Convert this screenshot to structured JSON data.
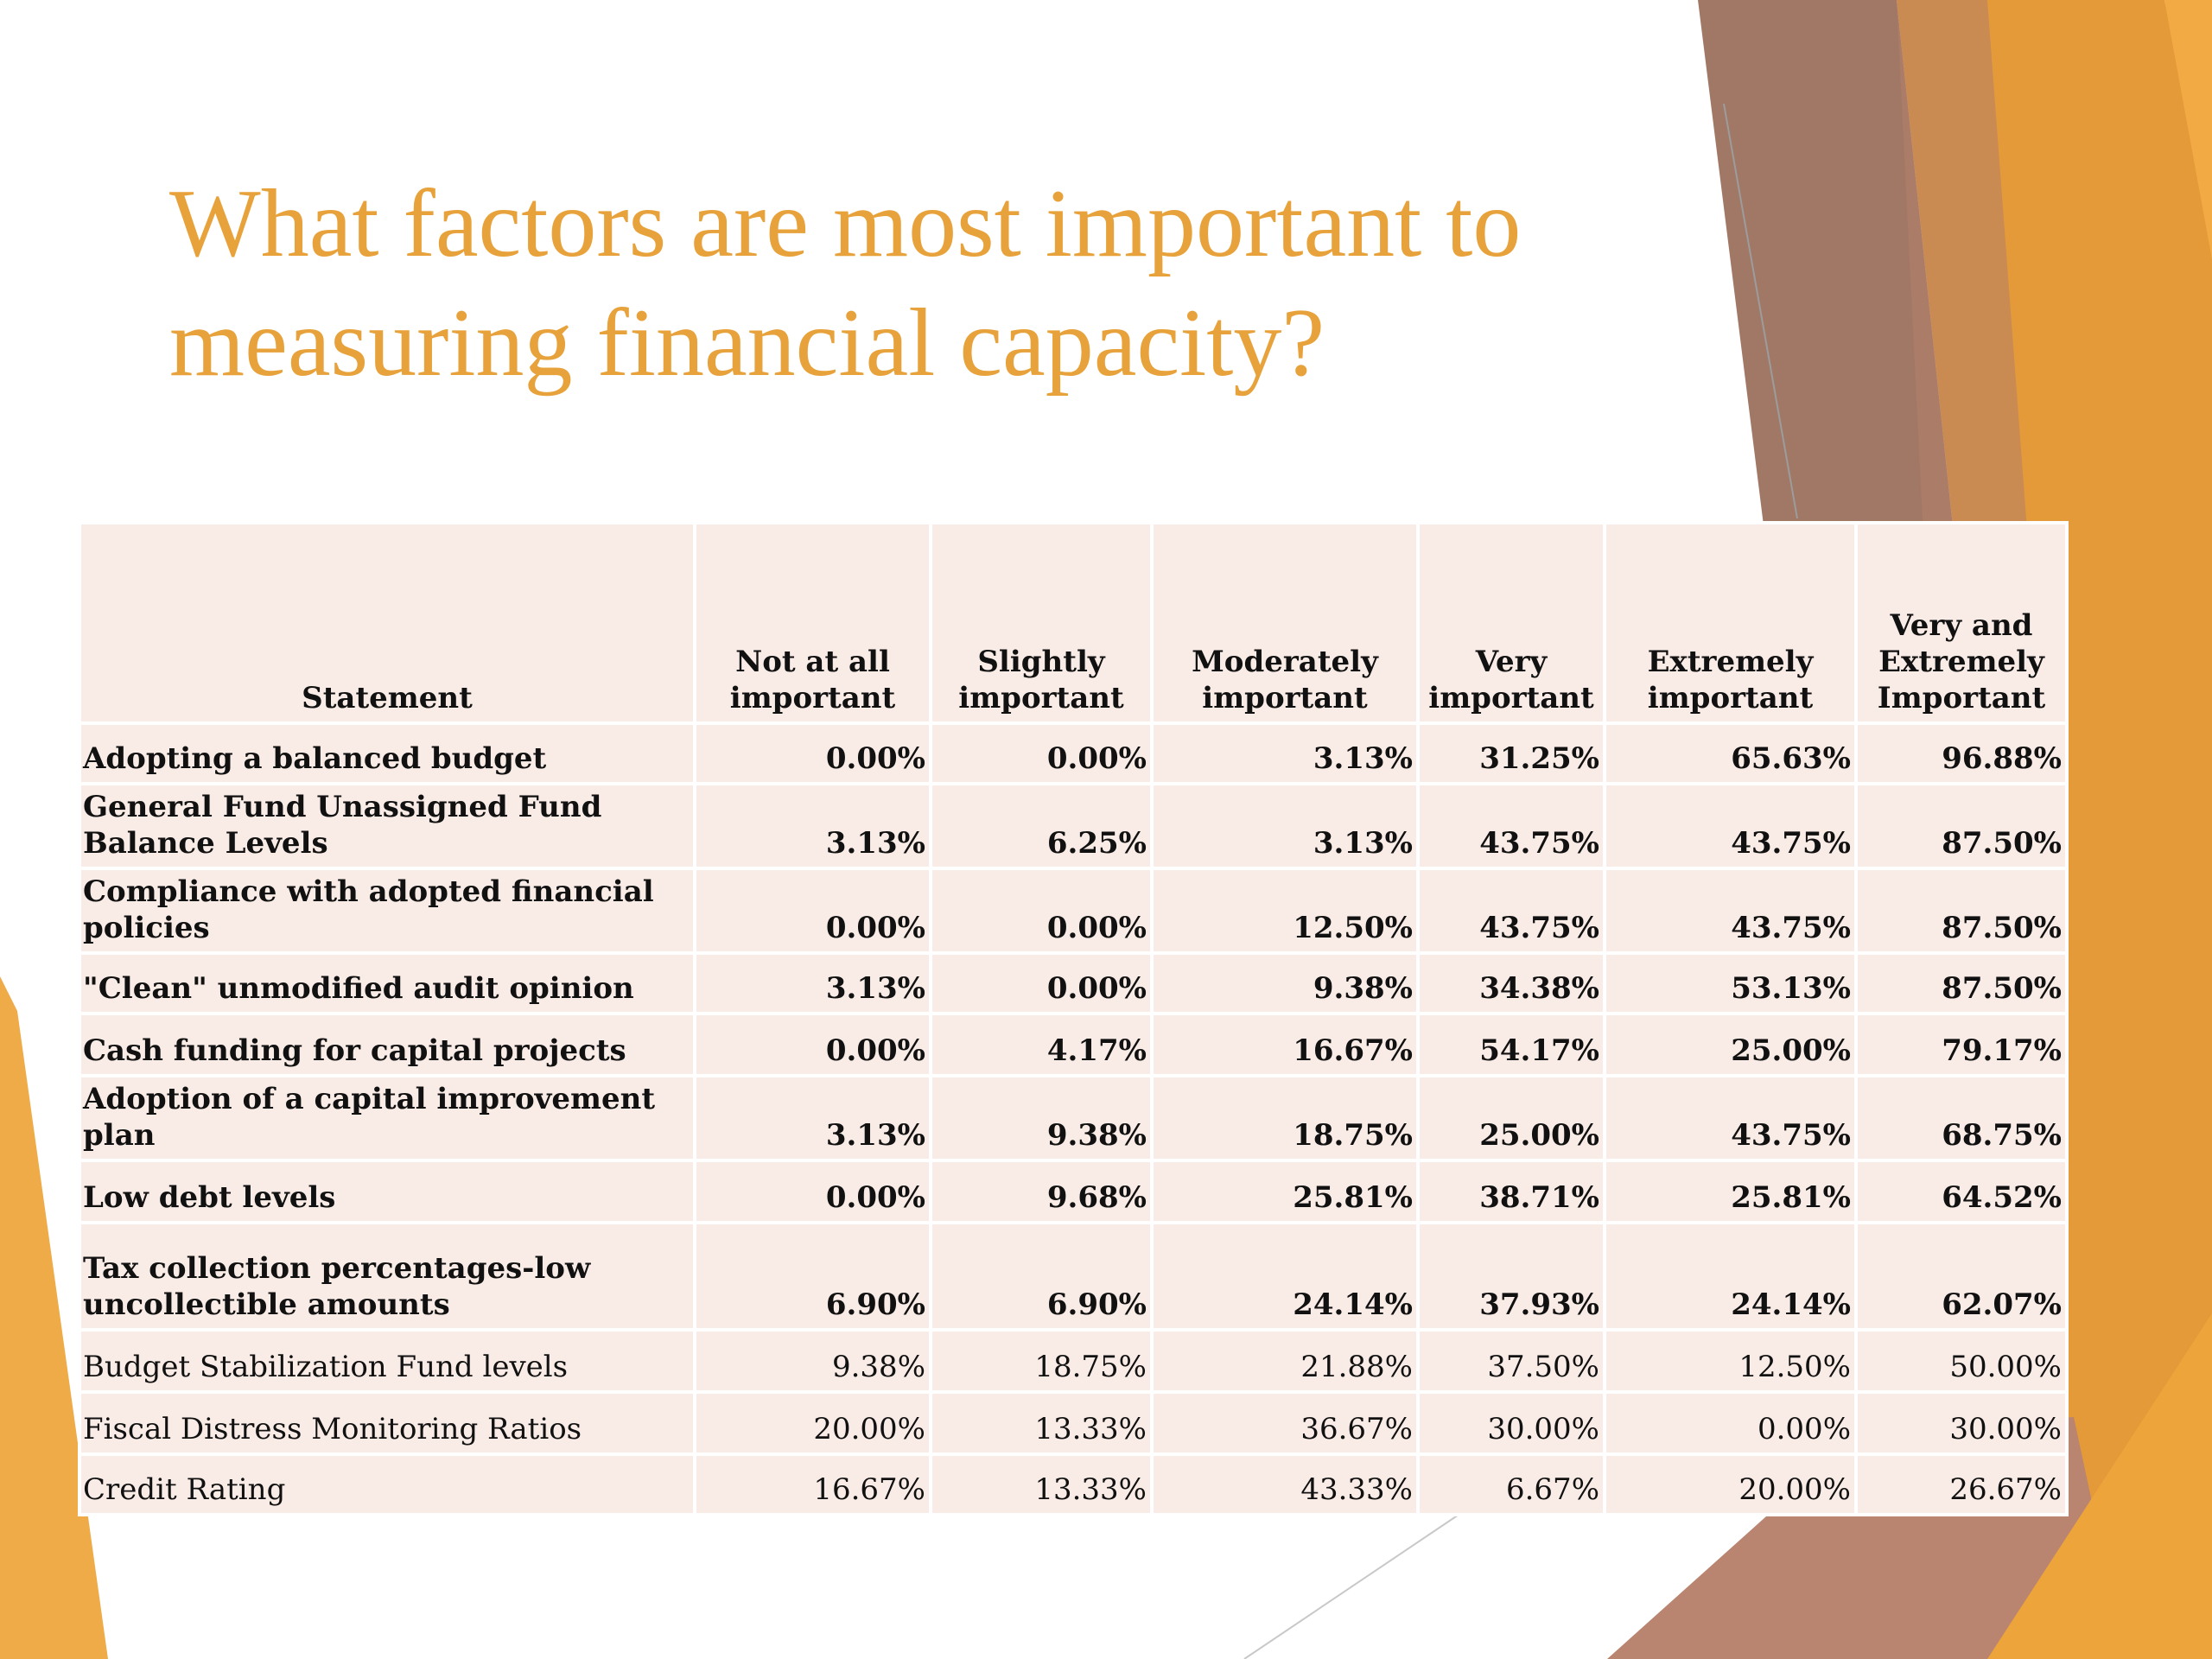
{
  "title": "What factors are most important to measuring financial capacity?",
  "colors": {
    "title": "#e8a23b",
    "table_bg": "#f9ece6",
    "accent_orange": "#eda43a",
    "accent_brown": "#a07866"
  },
  "table": {
    "headers": [
      "Statement",
      "Not at all important",
      "Slightly important",
      "Moderately important",
      "Very important",
      "Extremely important",
      "Very and Extremely Important"
    ],
    "rows": [
      {
        "statement": "Adopting a balanced budget",
        "values": [
          "0.00%",
          "0.00%",
          "3.13%",
          "31.25%",
          "65.63%",
          "96.88%"
        ]
      },
      {
        "statement": "General Fund Unassigned Fund Balance Levels",
        "values": [
          "3.13%",
          "6.25%",
          "3.13%",
          "43.75%",
          "43.75%",
          "87.50%"
        ]
      },
      {
        "statement": "Compliance with adopted financial policies",
        "values": [
          "0.00%",
          "0.00%",
          "12.50%",
          "43.75%",
          "43.75%",
          "87.50%"
        ]
      },
      {
        "statement": "\"Clean\" unmodified audit opinion",
        "values": [
          "3.13%",
          "0.00%",
          "9.38%",
          "34.38%",
          "53.13%",
          "87.50%"
        ]
      },
      {
        "statement": "Cash funding for capital projects",
        "values": [
          "0.00%",
          "4.17%",
          "16.67%",
          "54.17%",
          "25.00%",
          "79.17%"
        ]
      },
      {
        "statement": "Adoption of a capital improvement plan",
        "values": [
          "3.13%",
          "9.38%",
          "18.75%",
          "25.00%",
          "43.75%",
          "68.75%"
        ]
      },
      {
        "statement": "Low debt levels",
        "values": [
          "0.00%",
          "9.68%",
          "25.81%",
          "38.71%",
          "25.81%",
          "64.52%"
        ]
      },
      {
        "statement": "Tax collection percentages-low uncollectible amounts",
        "values": [
          "6.90%",
          "6.90%",
          "24.14%",
          "37.93%",
          "24.14%",
          "62.07%"
        ]
      },
      {
        "statement": "Budget Stabilization Fund levels",
        "values": [
          "9.38%",
          "18.75%",
          "21.88%",
          "37.50%",
          "12.50%",
          "50.00%"
        ]
      },
      {
        "statement": "Fiscal Distress Monitoring Ratios",
        "values": [
          "20.00%",
          "13.33%",
          "36.67%",
          "30.00%",
          "0.00%",
          "30.00%"
        ]
      },
      {
        "statement": "Credit Rating",
        "values": [
          "16.67%",
          "13.33%",
          "43.33%",
          "6.67%",
          "20.00%",
          "26.67%"
        ]
      }
    ]
  }
}
